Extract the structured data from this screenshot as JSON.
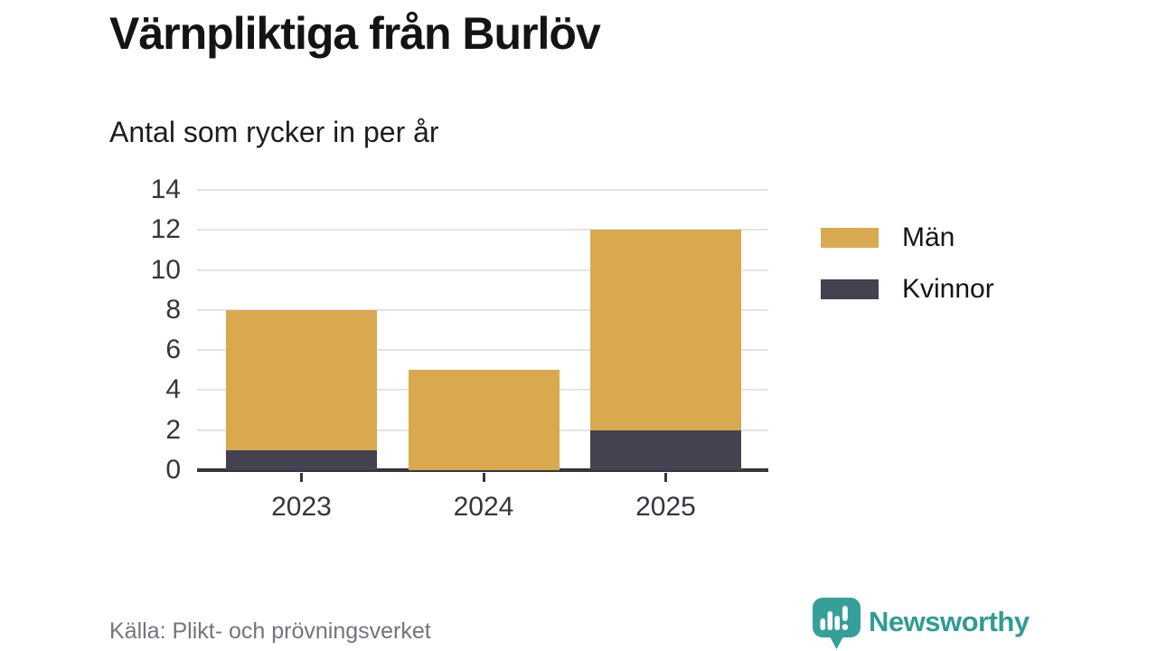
{
  "header": {
    "title": "Värnpliktiga från Burlöv",
    "subtitle": "Antal som rycker in per år"
  },
  "footer": {
    "source": "Källa: Plikt- och prövningsverket",
    "brand": "Newsworthy"
  },
  "colors": {
    "men": "#d9a950",
    "women": "#444150",
    "grid": "#e3e3e5",
    "axis": "#36353d",
    "text": "#141414",
    "source_gray": "#75747c",
    "brand_teal": "#2f9c94"
  },
  "chart_data": {
    "type": "bar",
    "stacked": true,
    "title": "Värnpliktiga från Burlöv",
    "subtitle": "Antal som rycker in per år",
    "categories": [
      "2023",
      "2024",
      "2025"
    ],
    "series": [
      {
        "name": "Män",
        "color": "#d9a950",
        "values": [
          7,
          5,
          10
        ]
      },
      {
        "name": "Kvinnor",
        "color": "#444150",
        "values": [
          1,
          0,
          2
        ]
      }
    ],
    "totals": [
      8,
      5,
      12
    ],
    "xlabel": "",
    "ylabel": "",
    "ylim": [
      0,
      14
    ],
    "yticks": [
      0,
      2,
      4,
      6,
      8,
      10,
      12,
      14
    ],
    "grid": true,
    "legend_position": "right"
  }
}
